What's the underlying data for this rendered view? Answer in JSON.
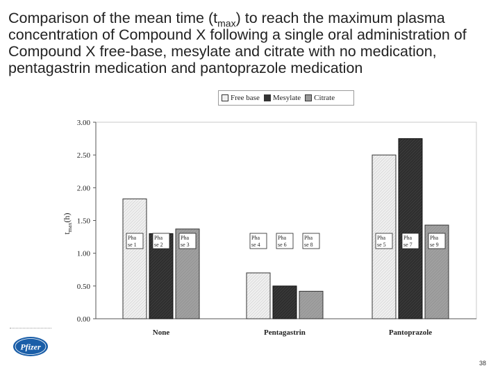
{
  "slide": {
    "title_before": "Comparison of the mean time (t",
    "title_sub": "max",
    "title_after": ") to reach the maximum plasma concentration of Compound X following a single oral administration of Compound X free-base, mesylate and citrate with no medication, pentagastrin medication and pantoprazole medication",
    "page_number": "38",
    "logo_text": "Pfizer"
  },
  "colors": {
    "free_base": "#e6e6e6",
    "mesylate": "#333333",
    "citrate": "#999999",
    "axis": "#555555"
  },
  "chart_data": {
    "type": "bar",
    "categories": [
      "None",
      "Pentagastrin",
      "Pantoprazole"
    ],
    "series": [
      {
        "name": "Free base",
        "values": [
          1.83,
          0.7,
          2.5
        ]
      },
      {
        "name": "Mesylate",
        "values": [
          1.3,
          0.5,
          2.75
        ]
      },
      {
        "name": "Citrate",
        "values": [
          1.37,
          0.42,
          1.43
        ]
      }
    ],
    "phase_labels": [
      [
        "Pha se 1",
        "Pha se 2",
        "Pha se 3"
      ],
      [
        "Pha se 4",
        "Pha se 6",
        "Pha se 8"
      ],
      [
        "Pha se 5",
        "Pha se 7",
        "Pha se 9"
      ]
    ],
    "ylabel_main": "t",
    "ylabel_sub": "max",
    "ylabel_tail": "(h)",
    "ylim": [
      0,
      3
    ],
    "yticks": [
      "0.00",
      "0.50",
      "1.00",
      "1.50",
      "2.00",
      "2.50",
      "3.00"
    ],
    "grid": false,
    "legend_position": "top"
  }
}
